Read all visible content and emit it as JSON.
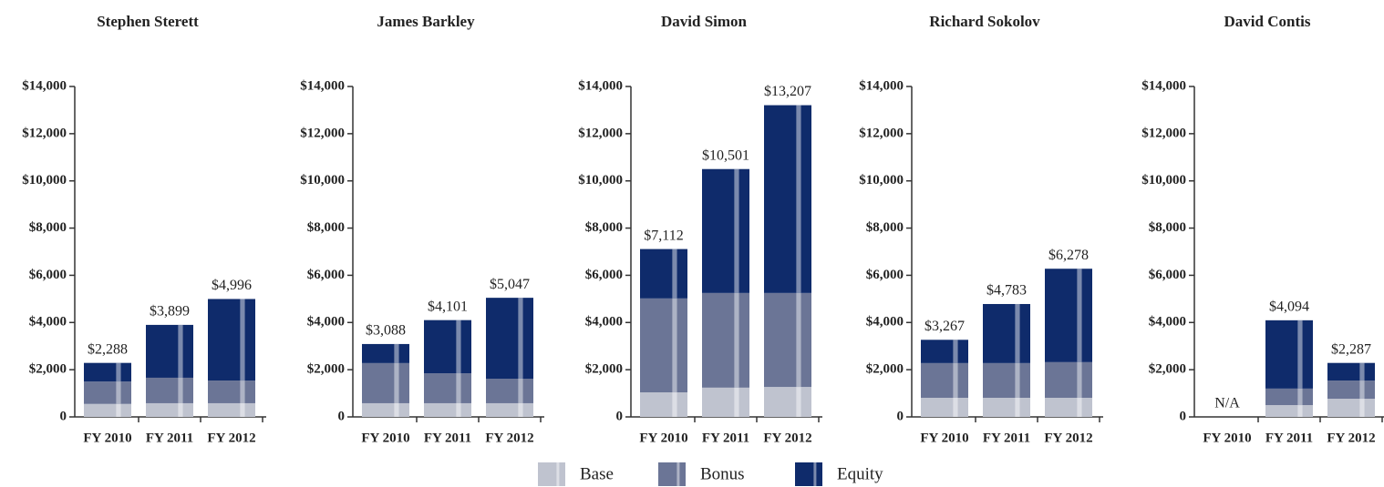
{
  "chart_data": [
    {
      "type": "stacked_bar",
      "title": "Stephen Sterett",
      "categories": [
        "FY 2010",
        "FY 2011",
        "FY 2012"
      ],
      "series": [
        {
          "name": "Base",
          "color": "#bfc3cf",
          "values": [
            550,
            580,
            580
          ]
        },
        {
          "name": "Bonus",
          "color": "#6b7596",
          "values": [
            950,
            1080,
            960
          ]
        },
        {
          "name": "Equity",
          "color": "#0f2b6b",
          "values": [
            788,
            2239,
            3456
          ]
        }
      ],
      "totals": [
        2288,
        3899,
        4996
      ],
      "total_labels": [
        "$2,288",
        "$3,899",
        "$4,996"
      ],
      "ylim": [
        0,
        14000
      ],
      "yticks": [
        0,
        {
          "value": 2000,
          "label": "$2,000"
        },
        {
          "value": 4000,
          "label": "$4,000"
        },
        {
          "value": 6000,
          "label": "$6,000"
        },
        {
          "value": 8000,
          "label": "$8,000"
        },
        {
          "value": 10000,
          "label": "$10,000"
        },
        {
          "value": 12000,
          "label": "$12,000"
        },
        {
          "value": 14000,
          "label": "$14,000"
        }
      ]
    },
    {
      "type": "stacked_bar",
      "title": "James Barkley",
      "categories": [
        "FY 2010",
        "FY 2011",
        "FY 2012"
      ],
      "series": [
        {
          "name": "Base",
          "color": "#bfc3cf",
          "values": [
            580,
            580,
            580
          ]
        },
        {
          "name": "Bonus",
          "color": "#6b7596",
          "values": [
            1700,
            1270,
            1040
          ]
        },
        {
          "name": "Equity",
          "color": "#0f2b6b",
          "values": [
            808,
            2251,
            3427
          ]
        }
      ],
      "totals": [
        3088,
        4101,
        5047
      ],
      "total_labels": [
        "$3,088",
        "$4,101",
        "$5,047"
      ],
      "ylim": [
        0,
        14000
      ],
      "yticks": [
        0,
        {
          "value": 2000,
          "label": "$2,000"
        },
        {
          "value": 4000,
          "label": "$4,000"
        },
        {
          "value": 6000,
          "label": "$6,000"
        },
        {
          "value": 8000,
          "label": "$8,000"
        },
        {
          "value": 10000,
          "label": "$10,000"
        },
        {
          "value": 12000,
          "label": "$12,000"
        },
        {
          "value": 14000,
          "label": "$14,000"
        }
      ]
    },
    {
      "type": "stacked_bar",
      "title": "David Simon",
      "categories": [
        "FY 2010",
        "FY 2011",
        "FY 2012"
      ],
      "series": [
        {
          "name": "Base",
          "color": "#bfc3cf",
          "values": [
            1040,
            1240,
            1270
          ]
        },
        {
          "name": "Bonus",
          "color": "#6b7596",
          "values": [
            3980,
            4010,
            3980
          ]
        },
        {
          "name": "Equity",
          "color": "#0f2b6b",
          "values": [
            2092,
            5251,
            7957
          ]
        }
      ],
      "totals": [
        7112,
        10501,
        13207
      ],
      "total_labels": [
        "$7,112",
        "$10,501",
        "$13,207"
      ],
      "ylim": [
        0,
        14000
      ],
      "yticks": [
        0,
        {
          "value": 2000,
          "label": "$2,000"
        },
        {
          "value": 4000,
          "label": "$4,000"
        },
        {
          "value": 6000,
          "label": "$6,000"
        },
        {
          "value": 8000,
          "label": "$8,000"
        },
        {
          "value": 10000,
          "label": "$10,000"
        },
        {
          "value": 12000,
          "label": "$12,000"
        },
        {
          "value": 14000,
          "label": "$14,000"
        }
      ]
    },
    {
      "type": "stacked_bar",
      "title": "Richard Sokolov",
      "categories": [
        "FY 2010",
        "FY 2011",
        "FY 2012"
      ],
      "series": [
        {
          "name": "Base",
          "color": "#bfc3cf",
          "values": [
            810,
            810,
            810
          ]
        },
        {
          "name": "Bonus",
          "color": "#6b7596",
          "values": [
            1470,
            1470,
            1510
          ]
        },
        {
          "name": "Equity",
          "color": "#0f2b6b",
          "values": [
            987,
            2503,
            3958
          ]
        }
      ],
      "totals": [
        3267,
        4783,
        6278
      ],
      "total_labels": [
        "$3,267",
        "$4,783",
        "$6,278"
      ],
      "ylim": [
        0,
        14000
      ],
      "yticks": [
        0,
        {
          "value": 2000,
          "label": "$2,000"
        },
        {
          "value": 4000,
          "label": "$4,000"
        },
        {
          "value": 6000,
          "label": "$6,000"
        },
        {
          "value": 8000,
          "label": "$8,000"
        },
        {
          "value": 10000,
          "label": "$10,000"
        },
        {
          "value": 12000,
          "label": "$12,000"
        },
        {
          "value": 14000,
          "label": "$14,000"
        }
      ]
    },
    {
      "type": "stacked_bar",
      "title": "David Contis",
      "categories": [
        "FY 2010",
        "FY 2011",
        "FY 2012"
      ],
      "series": [
        {
          "name": "Base",
          "color": "#bfc3cf",
          "values": [
            null,
            500,
            770
          ]
        },
        {
          "name": "Bonus",
          "color": "#6b7596",
          "values": [
            null,
            700,
            770
          ]
        },
        {
          "name": "Equity",
          "color": "#0f2b6b",
          "values": [
            null,
            2894,
            747
          ]
        }
      ],
      "totals": [
        null,
        4094,
        2287
      ],
      "total_labels": [
        "N/A",
        "$4,094",
        "$2,287"
      ],
      "ylim": [
        0,
        14000
      ],
      "yticks": [
        0,
        {
          "value": 2000,
          "label": "$2,000"
        },
        {
          "value": 4000,
          "label": "$4,000"
        },
        {
          "value": 6000,
          "label": "$6,000"
        },
        {
          "value": 8000,
          "label": "$8,000"
        },
        {
          "value": 10000,
          "label": "$10,000"
        },
        {
          "value": 12000,
          "label": "$12,000"
        },
        {
          "value": 14000,
          "label": "$14,000"
        }
      ]
    }
  ]
}
